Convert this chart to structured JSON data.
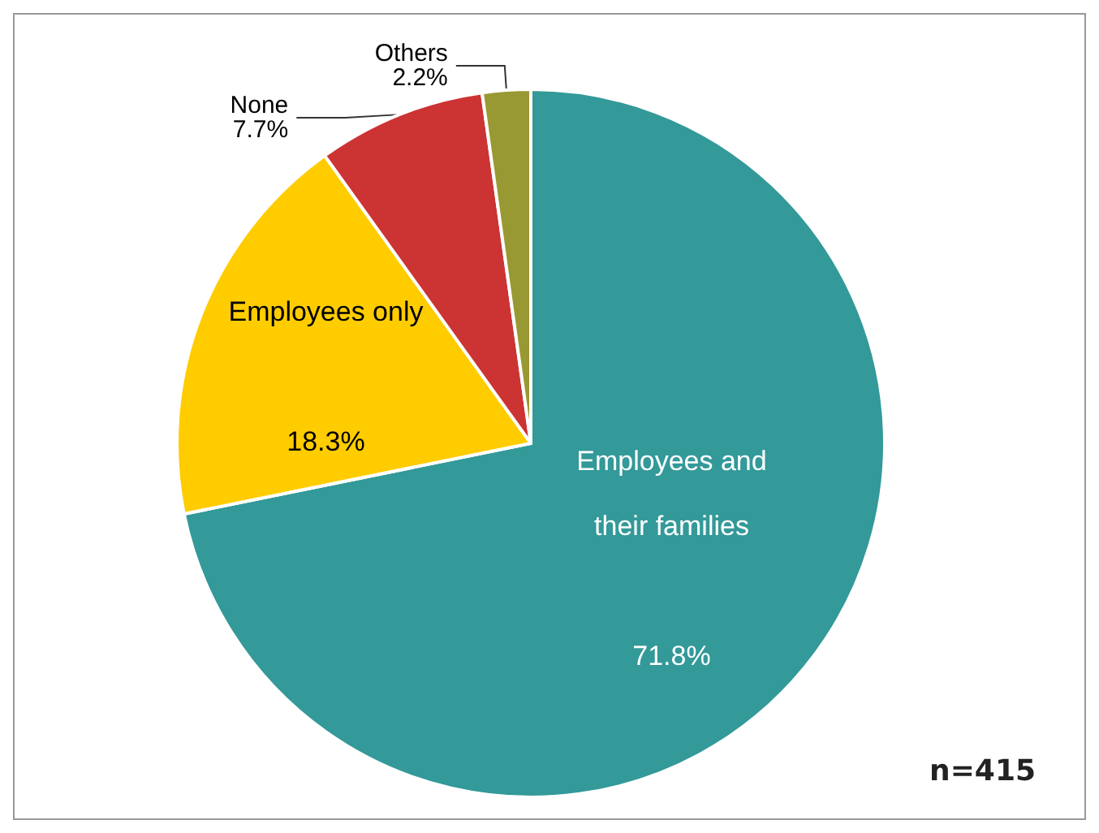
{
  "chart_data": {
    "type": "pie",
    "categories": [
      "Employees and their families",
      "Employees only",
      "None",
      "Others"
    ],
    "values": [
      71.8,
      18.3,
      7.7,
      2.2
    ],
    "colors": [
      "#339999",
      "#ffcc00",
      "#cc3333",
      "#999933"
    ],
    "value_labels": [
      "71.8%",
      "18.3%",
      "7.7%",
      "2.2%"
    ],
    "annotations": [
      "n=415"
    ]
  }
}
